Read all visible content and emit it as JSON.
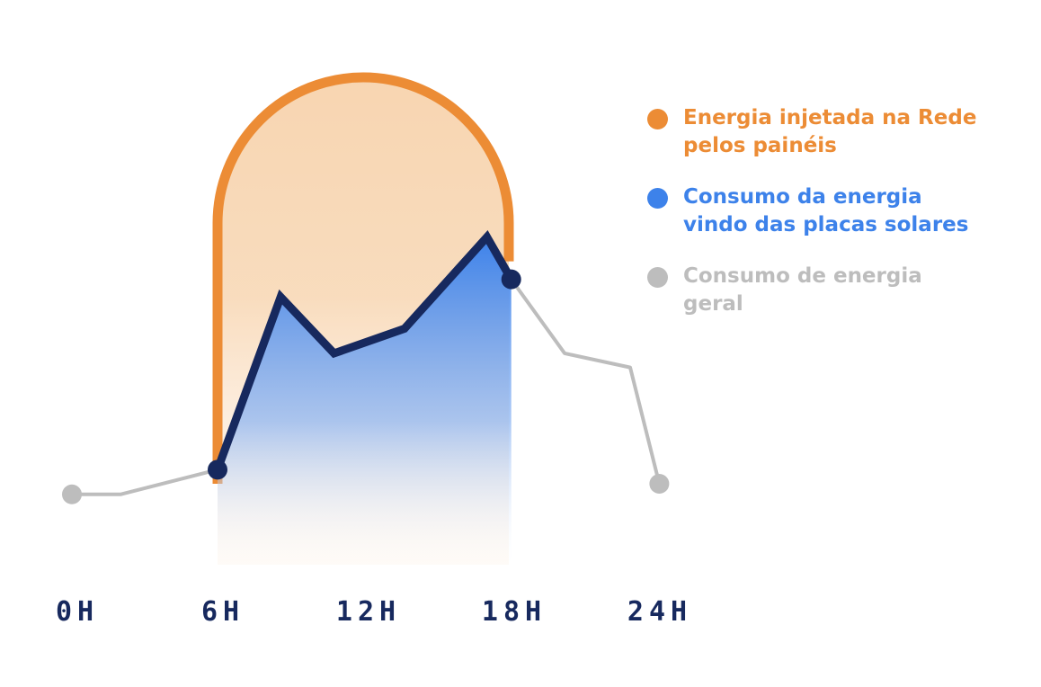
{
  "chart_data": {
    "type": "line",
    "x_ticks": [
      "0H",
      "6H",
      "12H",
      "18H",
      "24H"
    ],
    "x_tick_values": [
      0,
      6,
      12,
      18,
      24
    ],
    "xlim": [
      0,
      24
    ],
    "ylim": [
      0,
      100
    ],
    "grid": false,
    "legend_position": "right",
    "series": [
      {
        "name": "Consumo de energia geral",
        "color": "#bdbdbd",
        "points": [
          [
            0,
            22
          ],
          [
            2,
            22
          ],
          [
            6,
            29
          ],
          [
            8.6,
            78
          ],
          [
            10.8,
            62
          ],
          [
            13.7,
            69
          ],
          [
            17.1,
            95
          ],
          [
            18.1,
            83
          ],
          [
            20.3,
            62
          ],
          [
            23,
            58
          ],
          [
            24.2,
            25
          ]
        ],
        "dots_at": [
          0,
          24.2
        ]
      },
      {
        "name": "Consumo da energia vindo das placas solares",
        "color": "#17295e",
        "fill_color": "#3d82ea",
        "points": [
          [
            6,
            29
          ],
          [
            8.6,
            78
          ],
          [
            10.8,
            62
          ],
          [
            13.7,
            69
          ],
          [
            17.1,
            95
          ],
          [
            18.1,
            83
          ]
        ],
        "dots_at": [
          6,
          18.1
        ]
      },
      {
        "name": "Energia injetada na Rede pelos painéis",
        "type": "area",
        "color": "#ec8c35",
        "fill_color": "#f7c99a",
        "x_range": [
          6,
          18
        ],
        "peak": 100
      }
    ]
  },
  "legend": {
    "items": [
      {
        "label": "Energia injetada na Rede pelos painéis",
        "color": "#ec8c35"
      },
      {
        "label": "Consumo da energia vindo das placas solares",
        "color": "#3d82ea"
      },
      {
        "label": "Consumo de energia geral",
        "color": "#bdbdbd"
      }
    ]
  },
  "colors": {
    "tick_label": "#17295e"
  }
}
